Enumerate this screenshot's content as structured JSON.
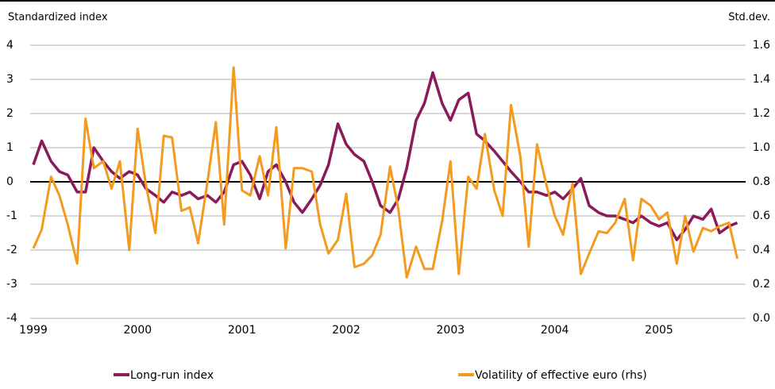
{
  "chart_data": {
    "type": "line",
    "y_label": "Standardized index",
    "y2_label": "Std.dev.",
    "x": [
      1999,
      1999.08,
      1999.17,
      1999.25,
      1999.33,
      1999.42,
      1999.5,
      1999.58,
      1999.67,
      1999.75,
      1999.83,
      1999.92,
      2000,
      2000.08,
      2000.17,
      2000.25,
      2000.33,
      2000.42,
      2000.5,
      2000.58,
      2000.67,
      2000.75,
      2000.83,
      2000.92,
      2001,
      2001.08,
      2001.17,
      2001.25,
      2001.33,
      2001.42,
      2001.5,
      2001.58,
      2001.67,
      2001.75,
      2001.83,
      2001.92,
      2002,
      2002.08,
      2002.17,
      2002.25,
      2002.33,
      2002.42,
      2002.5,
      2002.58,
      2002.67,
      2002.75,
      2002.83,
      2002.92,
      2003,
      2003.08,
      2003.17,
      2003.25,
      2003.33,
      2003.42,
      2003.5,
      2003.58,
      2003.67,
      2003.75,
      2003.83,
      2003.92,
      2004,
      2004.08,
      2004.17,
      2004.25,
      2004.33,
      2004.42,
      2004.5,
      2004.58,
      2004.67,
      2004.75,
      2004.83,
      2004.92,
      2005,
      2005.08,
      2005.17,
      2005.25,
      2005.33,
      2005.42,
      2005.5,
      2005.58,
      2005.67,
      2005.75
    ],
    "series": [
      {
        "name": "Long-run index",
        "color": "#8b1a5a",
        "axis": "y",
        "values": [
          0.5,
          1.2,
          0.6,
          0.3,
          0.2,
          -0.3,
          -0.3,
          1.0,
          0.6,
          0.3,
          0.1,
          0.3,
          0.2,
          -0.2,
          -0.4,
          -0.6,
          -0.3,
          -0.4,
          -0.3,
          -0.5,
          -0.4,
          -0.6,
          -0.3,
          0.5,
          0.6,
          0.2,
          -0.5,
          0.3,
          0.5,
          0.0,
          -0.6,
          -0.9,
          -0.5,
          -0.1,
          0.5,
          1.7,
          1.1,
          0.8,
          0.6,
          0.0,
          -0.7,
          -0.9,
          -0.5,
          0.4,
          1.8,
          2.3,
          3.2,
          2.3,
          1.8,
          2.4,
          2.6,
          1.4,
          1.2,
          0.9,
          0.6,
          0.3,
          0.0,
          -0.3,
          -0.3,
          -0.4,
          -0.3,
          -0.5,
          -0.2,
          0.1,
          -0.7,
          -0.9,
          -1.0,
          -1.0,
          -1.1,
          -1.2,
          -1.0,
          -1.2,
          -1.3,
          -1.2,
          -1.7,
          -1.4,
          -1.0,
          -1.1,
          -0.8,
          -1.5,
          -1.3,
          -1.2
        ]
      },
      {
        "name": "Volatility of effective euro (rhs)",
        "color": "#f39a1f",
        "axis": "y2",
        "values": [
          0.41,
          0.52,
          0.83,
          0.72,
          0.55,
          0.32,
          1.17,
          0.88,
          0.92,
          0.76,
          0.92,
          0.4,
          1.11,
          0.78,
          0.5,
          1.07,
          1.06,
          0.63,
          0.65,
          0.44,
          0.8,
          1.15,
          0.55,
          1.47,
          0.75,
          0.72,
          0.95,
          0.72,
          1.12,
          0.41,
          0.88,
          0.88,
          0.86,
          0.55,
          0.38,
          0.46,
          0.73,
          0.3,
          0.32,
          0.37,
          0.49,
          0.89,
          0.64,
          0.24,
          0.42,
          0.29,
          0.29,
          0.57,
          0.92,
          0.26,
          0.83,
          0.76,
          1.08,
          0.75,
          0.6,
          1.25,
          0.95,
          0.42,
          1.02,
          0.78,
          0.6,
          0.49,
          0.79,
          0.26,
          0.38,
          0.51,
          0.5,
          0.56,
          0.7,
          0.34,
          0.7,
          0.66,
          0.58,
          0.62,
          0.32,
          0.6,
          0.39,
          0.53,
          0.51,
          0.54,
          0.56,
          0.35
        ]
      }
    ],
    "xlim": [
      1999,
      2005.83
    ],
    "xticks": [
      1999,
      2000,
      2001,
      2002,
      2003,
      2004,
      2005
    ],
    "ylim": [
      -4,
      4
    ],
    "yticks": [
      4,
      3,
      2,
      1,
      0,
      -1,
      -2,
      -3,
      -4
    ],
    "y2lim": [
      0,
      1.6
    ],
    "y2ticks": [
      1.6,
      1.4,
      1.2,
      {
        "value": 1,
        "label": "1.0"
      },
      0.8,
      0.6,
      0.4,
      0.2,
      {
        "value": 0,
        "label": "0.0"
      }
    ],
    "grid": true
  }
}
